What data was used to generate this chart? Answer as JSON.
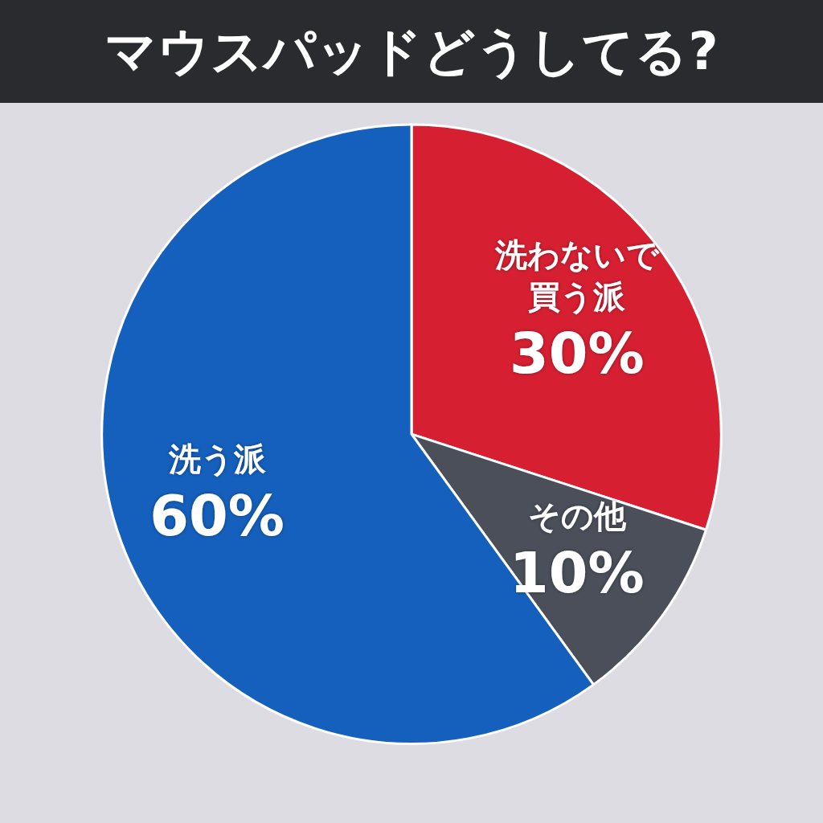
{
  "chart_data": {
    "type": "pie",
    "title": "マウスパッドどうしてる?",
    "categories": [
      "洗わないで買う派",
      "その他",
      "洗う派"
    ],
    "values": [
      30,
      10,
      60
    ],
    "value_labels": [
      "30%",
      "10%",
      "60%"
    ],
    "colors": [
      "#d62032",
      "#4a4f5a",
      "#1560bd"
    ],
    "legend": false
  }
}
